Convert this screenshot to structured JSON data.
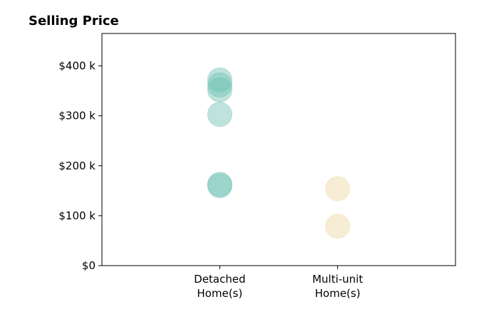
{
  "chart_data": {
    "type": "scatter",
    "title": "Selling Price",
    "xlabel": "",
    "ylabel": "",
    "categories": [
      [
        "Detached",
        "Home(s)"
      ],
      [
        "Multi-unit",
        "Home(s)"
      ]
    ],
    "xlim": [
      -1,
      2
    ],
    "ylim": [
      0,
      465000
    ],
    "yticks": [
      {
        "value": 0,
        "label": "$0"
      },
      {
        "value": 100000,
        "label": "$100 k"
      },
      {
        "value": 200000,
        "label": "$200 k"
      },
      {
        "value": 300000,
        "label": "$300 k"
      },
      {
        "value": 400000,
        "label": "$400 k"
      }
    ],
    "grid": false,
    "series": [
      {
        "category_index": 0,
        "color": "#6ec1b4",
        "opacity": 0.45,
        "values": [
          372000,
          362000,
          352000,
          303000,
          163000,
          160000
        ]
      },
      {
        "category_index": 1,
        "color": "#f1deb1",
        "opacity": 0.55,
        "values": [
          154000,
          79000
        ]
      }
    ]
  }
}
